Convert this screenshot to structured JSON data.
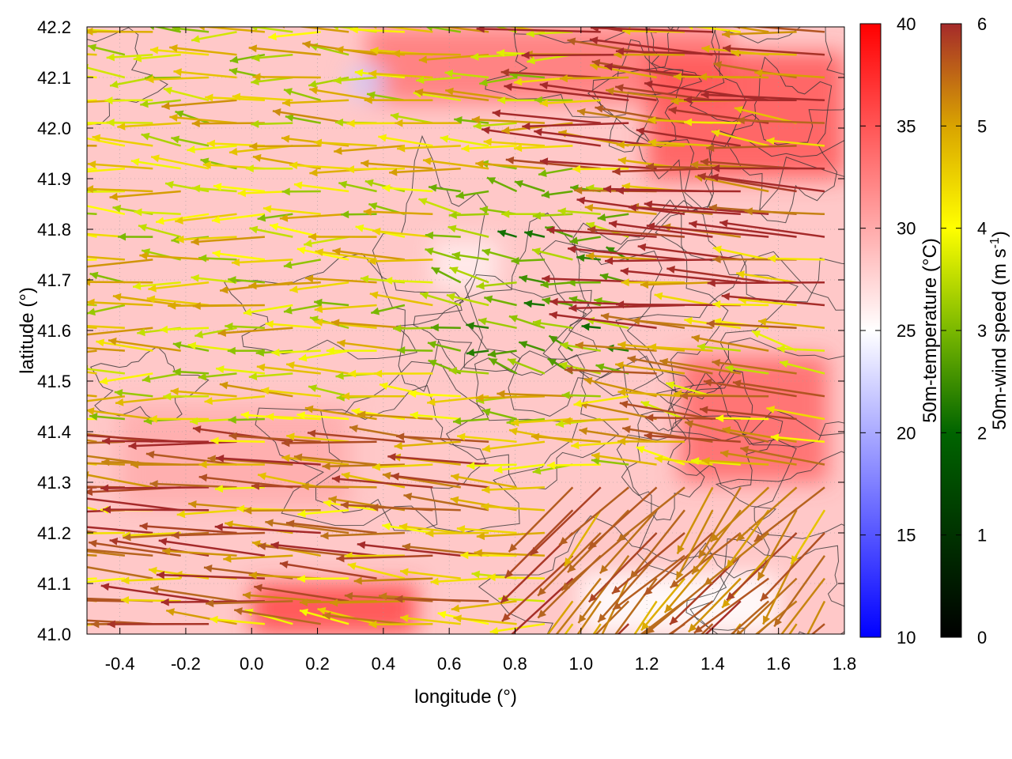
{
  "chart_data": {
    "type": "heatmap",
    "title": "",
    "xlabel": "longitude (°)",
    "ylabel": "latitude (°)",
    "xlim": [
      -0.5,
      1.8
    ],
    "ylim": [
      41.0,
      42.2
    ],
    "x_ticks": [
      "-0.4",
      "-0.2",
      "0.0",
      "0.2",
      "0.4",
      "0.6",
      "0.8",
      "1.0",
      "1.2",
      "1.4",
      "1.6",
      "1.8"
    ],
    "x_tick_values": [
      -0.4,
      -0.2,
      0.0,
      0.2,
      0.4,
      0.6,
      0.8,
      1.0,
      1.2,
      1.4,
      1.6,
      1.8
    ],
    "y_ticks": [
      "41.0",
      "41.1",
      "41.2",
      "41.3",
      "41.4",
      "41.5",
      "41.6",
      "41.7",
      "41.8",
      "41.9",
      "42.0",
      "42.1",
      "42.2"
    ],
    "y_tick_values": [
      41.0,
      41.1,
      41.2,
      41.3,
      41.4,
      41.5,
      41.6,
      41.7,
      41.8,
      41.9,
      42.0,
      42.1,
      42.2
    ],
    "grid": true,
    "temperature_colorbar": {
      "label": "50m-temperature (°C)",
      "range": [
        10,
        40
      ],
      "ticks": [
        "10",
        "15",
        "20",
        "25",
        "30",
        "35",
        "40"
      ],
      "tick_values": [
        10,
        15,
        20,
        25,
        30,
        35,
        40
      ],
      "colors": [
        "#0000ff",
        "#ffffff",
        "#ff0000"
      ]
    },
    "wind_colorbar": {
      "label": "50m-wind speed (m s-1)",
      "label_main": "50m-wind speed (m s",
      "label_sup": "-1",
      "label_end": ")",
      "range": [
        0,
        6
      ],
      "ticks": [
        "0",
        "1",
        "2",
        "3",
        "4",
        "5",
        "6"
      ],
      "tick_values": [
        0,
        1,
        2,
        3,
        4,
        5,
        6
      ],
      "colors": [
        "#000000",
        "#006400",
        "#7ab800",
        "#ffff00",
        "#d9a400",
        "#b86a1e",
        "#a52a2a"
      ]
    },
    "series": [
      {
        "layer": "temperature",
        "regions": [
          {
            "lon": [
              0.35,
              1.45
            ],
            "lat": [
              42.05,
              42.2
            ],
            "temp": 33
          },
          {
            "lon": [
              1.2,
              1.8
            ],
            "lat": [
              41.9,
              42.15
            ],
            "temp": 35
          },
          {
            "lon": [
              -0.4,
              0.3
            ],
            "lat": [
              41.25,
              41.45
            ],
            "temp": 30
          },
          {
            "lon": [
              0.0,
              0.5
            ],
            "lat": [
              41.0,
              41.1
            ],
            "temp": 36
          },
          {
            "lon": [
              1.3,
              1.75
            ],
            "lat": [
              41.3,
              41.55
            ],
            "temp": 34
          },
          {
            "lon": [
              1.0,
              1.6
            ],
            "lat": [
              41.0,
              41.12
            ],
            "temp": 25
          },
          {
            "lon": [
              0.3,
              0.4
            ],
            "lat": [
              42.06,
              42.12
            ],
            "temp": 22
          },
          {
            "lon": [
              0.55,
              0.75
            ],
            "lat": [
              41.68,
              41.78
            ],
            "temp": 26
          }
        ]
      },
      {
        "layer": "wind",
        "regions": [
          {
            "lon": [
              -0.5,
              0.6
            ],
            "lat": [
              41.4,
              42.2
            ],
            "u": -3.5,
            "v": 0.1
          },
          {
            "lon": [
              0.6,
              1.2
            ],
            "lat": [
              41.5,
              41.9
            ],
            "u": -2.0,
            "v": 0.3
          },
          {
            "lon": [
              1.0,
              1.8
            ],
            "lat": [
              41.6,
              42.2
            ],
            "u": -5.8,
            "v": 0.4
          },
          {
            "lon": [
              -0.5,
              0.8
            ],
            "lat": [
              41.0,
              41.4
            ],
            "u": -5.0,
            "v": 0.3
          },
          {
            "lon": [
              0.9,
              1.8
            ],
            "lat": [
              41.0,
              41.3
            ],
            "u": -3.5,
            "v": -3.5
          },
          {
            "lon": [
              1.2,
              1.8
            ],
            "lat": [
              41.3,
              41.6
            ],
            "u": -4.5,
            "v": 0.6
          }
        ]
      }
    ]
  }
}
